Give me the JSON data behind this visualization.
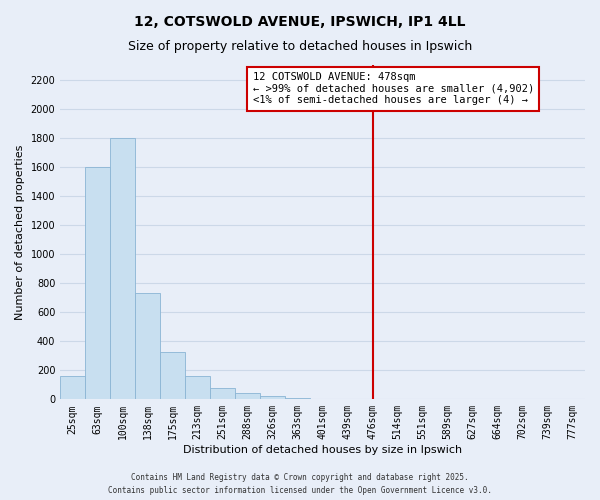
{
  "title": "12, COTSWOLD AVENUE, IPSWICH, IP1 4LL",
  "subtitle": "Size of property relative to detached houses in Ipswich",
  "xlabel": "Distribution of detached houses by size in Ipswich",
  "ylabel": "Number of detached properties",
  "bar_color": "#c8dff0",
  "bar_edge_color": "#8ab4d4",
  "background_color": "#e8eef8",
  "grid_color": "#ccd8e8",
  "bin_labels": [
    "25sqm",
    "63sqm",
    "100sqm",
    "138sqm",
    "175sqm",
    "213sqm",
    "251sqm",
    "288sqm",
    "326sqm",
    "363sqm",
    "401sqm",
    "439sqm",
    "476sqm",
    "514sqm",
    "551sqm",
    "589sqm",
    "627sqm",
    "664sqm",
    "702sqm",
    "739sqm",
    "777sqm"
  ],
  "bar_heights": [
    160,
    1600,
    1800,
    730,
    325,
    160,
    80,
    45,
    20,
    10,
    5,
    0,
    0,
    0,
    0,
    0,
    0,
    0,
    0,
    0,
    0
  ],
  "num_bins": 21,
  "ylim": [
    0,
    2300
  ],
  "yticks": [
    0,
    200,
    400,
    600,
    800,
    1000,
    1200,
    1400,
    1600,
    1800,
    2000,
    2200
  ],
  "vline_x": 12,
  "vline_color": "#cc0000",
  "annotation_title": "12 COTSWOLD AVENUE: 478sqm",
  "annotation_line1": "← >99% of detached houses are smaller (4,902)",
  "annotation_line2": "<1% of semi-detached houses are larger (4) →",
  "annotation_box_color": "#ffffff",
  "annotation_border_color": "#cc0000",
  "footer_line1": "Contains HM Land Registry data © Crown copyright and database right 2025.",
  "footer_line2": "Contains public sector information licensed under the Open Government Licence v3.0.",
  "title_fontsize": 10,
  "subtitle_fontsize": 9,
  "label_fontsize": 8,
  "tick_fontsize": 7,
  "annotation_fontsize": 7.5,
  "footer_fontsize": 5.5
}
